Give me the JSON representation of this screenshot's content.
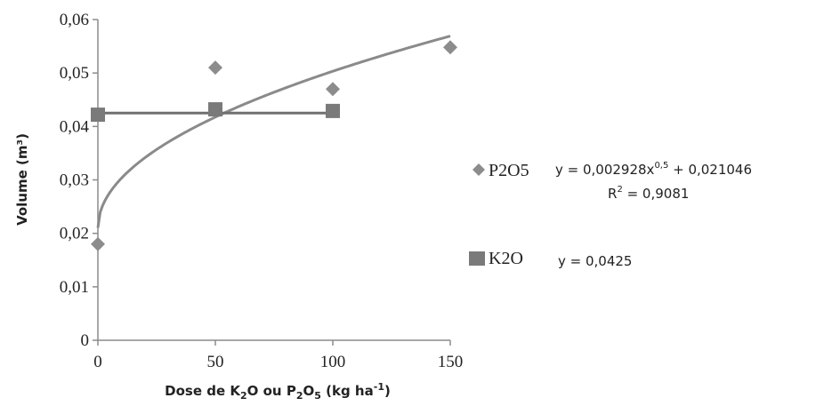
{
  "chart_data": {
    "type": "scatter",
    "xlabel": {
      "prefix": "Dose de K",
      "sub1": "2",
      "mid": "O ou P",
      "sub2": "2",
      "mid2": "O",
      "sub3": "5",
      "suffix": " (kg ha",
      "sup": "-1",
      "end": ")"
    },
    "ylabel": "Volume (m³)",
    "xlim": [
      0,
      150
    ],
    "ylim": [
      0,
      0.06
    ],
    "x_ticks": [
      {
        "value": 0,
        "label": "0"
      },
      {
        "value": 50,
        "label": "50"
      },
      {
        "value": 100,
        "label": "100"
      },
      {
        "value": 150,
        "label": "150"
      }
    ],
    "y_ticks": [
      {
        "value": 0,
        "label": "0"
      },
      {
        "value": 0.01,
        "label": "0,01"
      },
      {
        "value": 0.02,
        "label": "0,02"
      },
      {
        "value": 0.03,
        "label": "0,03"
      },
      {
        "value": 0.04,
        "label": "0,04"
      },
      {
        "value": 0.05,
        "label": "0,05"
      },
      {
        "value": 0.06,
        "label": "0,06"
      }
    ],
    "grid": false,
    "legend_position": "right",
    "series": [
      {
        "name": "P2O5",
        "marker": "diamond",
        "color": "#8c8c8c",
        "points": [
          {
            "x": 0,
            "y": 0.018
          },
          {
            "x": 50,
            "y": 0.051
          },
          {
            "x": 100,
            "y": 0.047
          },
          {
            "x": 150,
            "y": 0.0548
          }
        ],
        "trend": {
          "type": "power",
          "a": 0.002928,
          "p": 0.5,
          "b": 0.021046,
          "x_range": [
            0,
            150
          ]
        },
        "equation": {
          "y_prefix": "y =  0,002928x",
          "exp": "0,5",
          "rest": " + 0,021046",
          "r2_prefix": "R",
          "r2_sup": "2",
          "r2_rest": " = 0,9081"
        }
      },
      {
        "name": "K2O",
        "marker": "square",
        "color": "#7a7a7a",
        "points": [
          {
            "x": 0,
            "y": 0.0422
          },
          {
            "x": 50,
            "y": 0.0432
          },
          {
            "x": 100,
            "y": 0.0429
          }
        ],
        "trend": {
          "type": "constant",
          "value": 0.0425,
          "x_range": [
            0,
            100
          ]
        },
        "equation": {
          "y_prefix": "y = 0,0425"
        }
      }
    ],
    "colors": {
      "axis": "#8c8c8c",
      "line": "#8a8a8a"
    }
  }
}
